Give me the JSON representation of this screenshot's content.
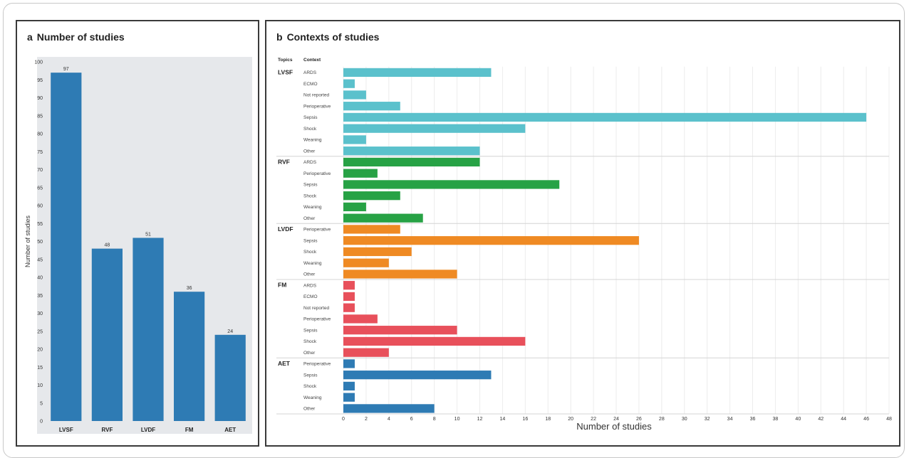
{
  "chart_data": [
    {
      "panel_letter": "a",
      "title": "Number of studies",
      "type": "bar",
      "categories": [
        "LVSF",
        "RVF",
        "LVDF",
        "FM",
        "AET"
      ],
      "values": [
        97,
        48,
        51,
        36,
        24
      ],
      "value_labels": [
        "97",
        "48",
        "51",
        "36",
        "24"
      ],
      "ylabel": "Number of studies",
      "xlabel": "",
      "ylim": [
        0,
        100
      ],
      "yticks": [
        0,
        5,
        10,
        15,
        20,
        25,
        30,
        35,
        40,
        45,
        50,
        55,
        60,
        65,
        70,
        75,
        80,
        85,
        90,
        95,
        100
      ],
      "grid": false,
      "bar_color": "#2e7bb4",
      "background": "#e6e8eb"
    },
    {
      "panel_letter": "b",
      "title": "Contexts of studies",
      "type": "bar",
      "orientation": "horizontal",
      "topics_header": "Topics",
      "context_header": "Context",
      "xlabel": "Number of studies",
      "xlim": [
        0,
        48
      ],
      "xticks": [
        0,
        2,
        4,
        6,
        8,
        10,
        12,
        14,
        16,
        18,
        20,
        22,
        24,
        26,
        28,
        30,
        32,
        34,
        36,
        38,
        40,
        42,
        44,
        46,
        48
      ],
      "grid": true,
      "groups": [
        {
          "topic": "LVSF",
          "color": "#5bc1cc",
          "contexts": [
            "ARDS",
            "ECMO",
            "Not reported",
            "Perioperative",
            "Sepsis",
            "Shock",
            "Weaning",
            "Other"
          ],
          "values": [
            13,
            1,
            2,
            5,
            46,
            16,
            2,
            12
          ]
        },
        {
          "topic": "RVF",
          "color": "#27a245",
          "contexts": [
            "ARDS",
            "Perioperative",
            "Sepsis",
            "Shock",
            "Weaning",
            "Other"
          ],
          "values": [
            12,
            3,
            19,
            5,
            2,
            7
          ]
        },
        {
          "topic": "LVDF",
          "color": "#ef8a23",
          "contexts": [
            "Perioperative",
            "Sepsis",
            "Shock",
            "Weaning",
            "Other"
          ],
          "values": [
            5,
            26,
            6,
            4,
            10
          ]
        },
        {
          "topic": "FM",
          "color": "#e8505b",
          "contexts": [
            "ARDS",
            "ECMO",
            "Not reported",
            "Perioperative",
            "Sepsis",
            "Shock",
            "Other"
          ],
          "values": [
            1,
            1,
            1,
            3,
            10,
            16,
            4
          ]
        },
        {
          "topic": "AET",
          "color": "#2e7bb4",
          "contexts": [
            "Perioperative",
            "Sepsis",
            "Shock",
            "Weaning",
            "Other"
          ],
          "values": [
            1,
            13,
            1,
            1,
            8
          ]
        }
      ]
    }
  ]
}
